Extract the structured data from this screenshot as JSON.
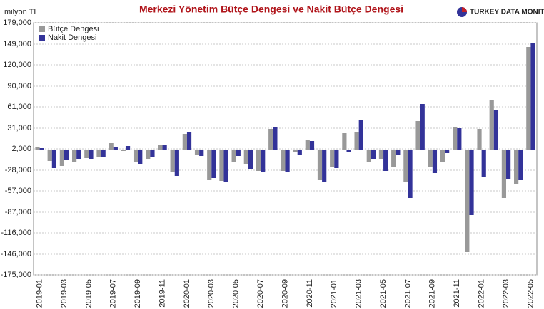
{
  "chart_data": {
    "type": "bar",
    "title": "Merkezi Yönetim Bütçe Dengesi ve Nakit Bütçe Dengesi",
    "y_label": "milyon TL",
    "source_logo": "TURKEY DATA MONITOR",
    "categories": [
      "2019-01",
      null,
      "2019-03",
      null,
      "2019-05",
      null,
      "2019-07",
      null,
      "2019-09",
      null,
      "2019-11",
      null,
      "2020-01",
      null,
      "2020-03",
      null,
      "2020-05",
      null,
      "2020-07",
      null,
      "2020-09",
      null,
      "2020-11",
      null,
      "2021-01",
      null,
      "2021-03",
      null,
      "2021-05",
      null,
      "2021-07",
      null,
      "2021-09",
      null,
      "2021-11",
      null,
      "2022-01",
      null,
      "2022-03",
      null,
      "2022-05"
    ],
    "series": [
      {
        "name": "Bütçe Dengesi",
        "color": "#999999",
        "values": [
          4000,
          -15000,
          -22000,
          -16000,
          -11000,
          -10000,
          10000,
          -1000,
          -17000,
          -13000,
          8000,
          -31000,
          23000,
          -6000,
          -42000,
          -43000,
          -16000,
          -20000,
          -29000,
          30000,
          -29000,
          -3000,
          14000,
          -42000,
          -23000,
          24000,
          25000,
          -16000,
          -12000,
          -24000,
          -45000,
          41000,
          -23000,
          -16000,
          32000,
          -143000,
          30000,
          71000,
          -67000,
          -48000,
          145000
        ]
      },
      {
        "name": "Nakit Dengesi",
        "color": "#333399",
        "values": [
          3000,
          -25000,
          -14000,
          -13000,
          -13000,
          -10000,
          4000,
          6000,
          -20000,
          -10000,
          8000,
          -36000,
          25000,
          -8000,
          -39000,
          -45000,
          -8000,
          -26000,
          -30000,
          32000,
          -30000,
          -6000,
          13000,
          -45000,
          -25000,
          -3000,
          42000,
          -12000,
          -29000,
          -6000,
          -67000,
          65000,
          -32000,
          -4000,
          31000,
          -91000,
          -38000,
          56000,
          -40000,
          -42000,
          150000
        ]
      }
    ],
    "ylim": [
      -175000,
      179000
    ],
    "yticks": [
      {
        "value": -175000,
        "label": "-175,000"
      },
      {
        "value": -146000,
        "label": "-146,000"
      },
      {
        "value": -116000,
        "label": "-116,000"
      },
      {
        "value": -87000,
        "label": "-87,000"
      },
      {
        "value": -57000,
        "label": "-57,000"
      },
      {
        "value": -28000,
        "label": "-28,000"
      },
      {
        "value": 2000,
        "label": "2,000"
      },
      {
        "value": 31000,
        "label": "31,000"
      },
      {
        "value": 61000,
        "label": "61,000"
      },
      {
        "value": 90000,
        "label": "90,000"
      },
      {
        "value": 120000,
        "label": "120,000"
      },
      {
        "value": 149000,
        "label": "149,000"
      },
      {
        "value": 179000,
        "label": "179,000"
      }
    ],
    "grid": true,
    "legend": "top-left"
  }
}
